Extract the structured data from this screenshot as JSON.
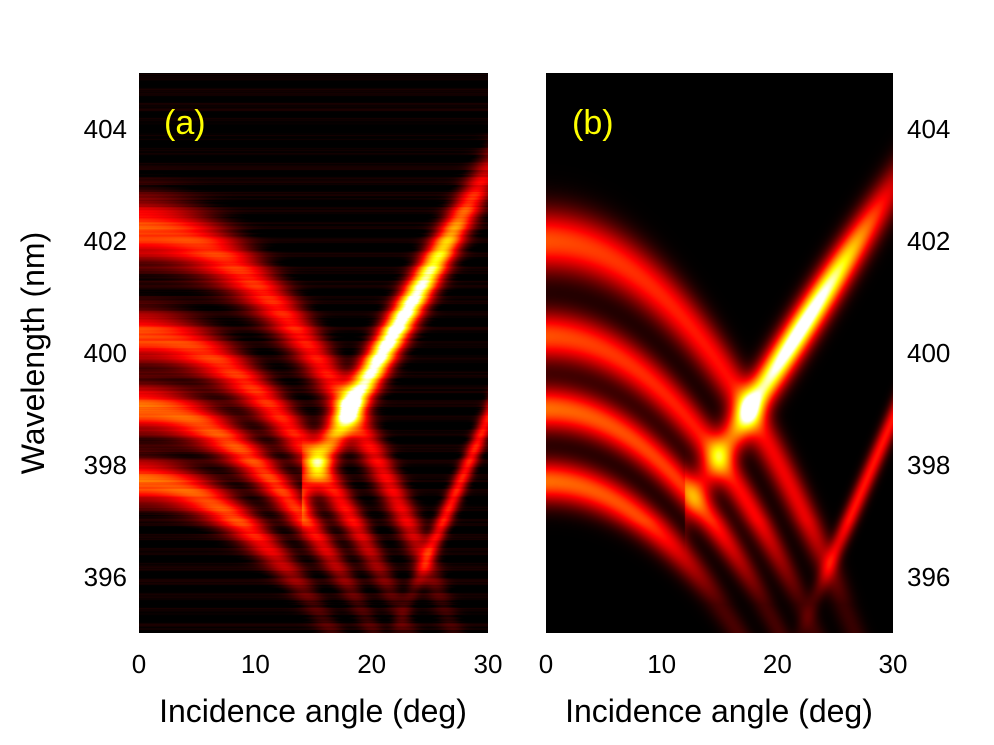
{
  "chart_data": [
    {
      "type": "heatmap",
      "panel_label": "(a)",
      "xlabel": "Incidence angle (deg)",
      "ylabel": "Wavelength (nm)",
      "xlim": [
        0,
        30
      ],
      "ylim": [
        395,
        405
      ],
      "xticks": [
        0,
        10,
        20,
        30
      ],
      "yticks": [
        396,
        398,
        400,
        402,
        404
      ],
      "y_axis_side": "left",
      "colormap": "black-red-yellow-white (hot)",
      "noise": true,
      "ridges": [
        {
          "lambda_at_0": 402.2,
          "curvature": 0.0098,
          "width": 0.55,
          "intensity": 0.55
        },
        {
          "lambda_at_0": 400.3,
          "curvature": 0.0098,
          "width": 0.45,
          "intensity": 0.55
        },
        {
          "lambda_at_0": 399.0,
          "curvature": 0.0098,
          "width": 0.4,
          "intensity": 0.6
        },
        {
          "lambda_at_0": 397.7,
          "curvature": 0.0098,
          "width": 0.38,
          "intensity": 0.6
        }
      ],
      "hotspot": {
        "angle_start": 16,
        "lambda_start": 398.3,
        "angle_end": 29,
        "lambda_end": 402.8,
        "width": 0.5,
        "peak_angle": 22,
        "peak_lambda": 400.0
      },
      "faint_band": {
        "angle_start": 22,
        "lambda_start": 395.0,
        "angle_end": 30,
        "lambda_end": 398.8,
        "width": 0.35,
        "intensity": 0.45
      }
    },
    {
      "type": "heatmap",
      "panel_label": "(b)",
      "xlabel": "Incidence angle (deg)",
      "xlim": [
        0,
        30
      ],
      "ylim": [
        395,
        405
      ],
      "xticks": [
        0,
        10,
        20,
        30
      ],
      "yticks": [
        396,
        398,
        400,
        402,
        404
      ],
      "y_axis_side": "right",
      "colormap": "black-red-yellow-white (hot)",
      "noise": false,
      "ridges": [
        {
          "lambda_at_0": 402.0,
          "curvature": 0.0098,
          "width": 0.55,
          "intensity": 0.55
        },
        {
          "lambda_at_0": 400.3,
          "curvature": 0.0098,
          "width": 0.45,
          "intensity": 0.55
        },
        {
          "lambda_at_0": 399.0,
          "curvature": 0.0098,
          "width": 0.4,
          "intensity": 0.6
        },
        {
          "lambda_at_0": 397.7,
          "curvature": 0.0098,
          "width": 0.38,
          "intensity": 0.6
        }
      ],
      "hotspot": {
        "angle_start": 14,
        "lambda_start": 397.9,
        "angle_end": 29,
        "lambda_end": 402.6,
        "width": 0.5,
        "peak_angle": 22,
        "peak_lambda": 400.0
      },
      "faint_band": {
        "angle_start": 22,
        "lambda_start": 395.0,
        "angle_end": 30,
        "lambda_end": 398.8,
        "width": 0.35,
        "intensity": 0.45
      }
    }
  ],
  "colors": {
    "panel_label": "#ffff00",
    "background": "#ffffff",
    "text": "#000000"
  }
}
